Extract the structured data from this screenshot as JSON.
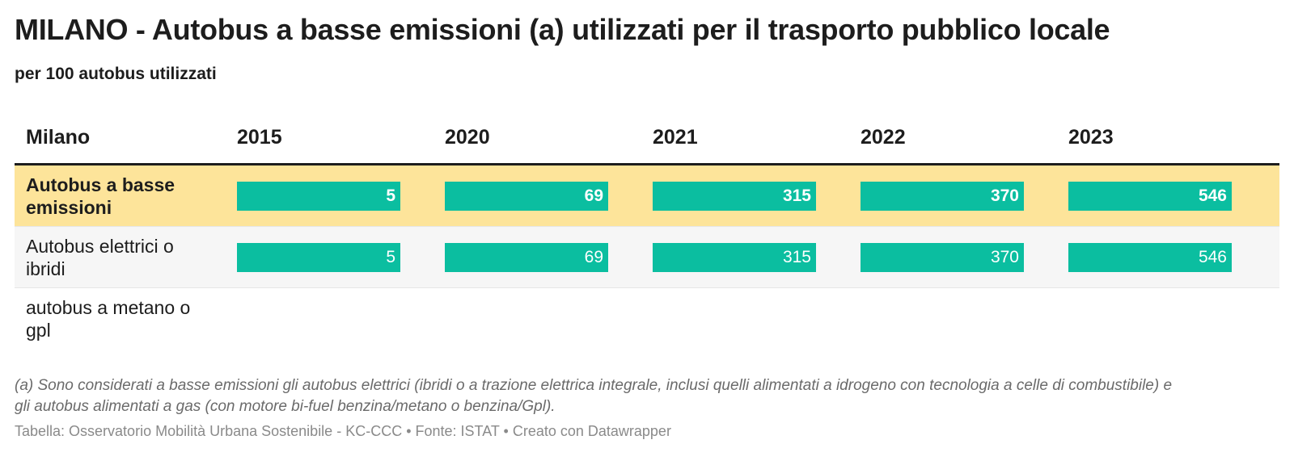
{
  "title": "MILANO - Autobus a basse emissioni (a) utilizzati per il trasporto pubblico locale",
  "subtitle": "per 100 autobus utilizzati",
  "colors": {
    "bar": "#0bbea0",
    "highlight_row": "#fde49a",
    "alt_row": "#f6f6f6"
  },
  "chart_data": {
    "type": "table",
    "row_header": "Milano",
    "columns": [
      "2015",
      "2020",
      "2021",
      "2022",
      "2023"
    ],
    "rows": [
      {
        "label": "Autobus a basse emissioni",
        "values": [
          5,
          69,
          315,
          370,
          546
        ],
        "highlight": true
      },
      {
        "label": "Autobus elettrici o ibridi",
        "values": [
          5,
          69,
          315,
          370,
          546
        ],
        "highlight": false
      },
      {
        "label": "autobus a metano o gpl",
        "values": [
          null,
          null,
          null,
          null,
          null
        ],
        "highlight": false
      }
    ]
  },
  "notes": "(a) Sono considerati a basse emissioni gli autobus elettrici (ibridi o a trazione elettrica integrale, inclusi quelli alimentati a idrogeno con tecnologia a celle di combustibile) e gli autobus alimentati a gas (con motore bi-fuel benzina/metano o benzina/Gpl).",
  "source": "Tabella: Osservatorio Mobilità Urbana Sostenibile - KC-CCC • Fonte: ISTAT • Creato con Datawrapper"
}
